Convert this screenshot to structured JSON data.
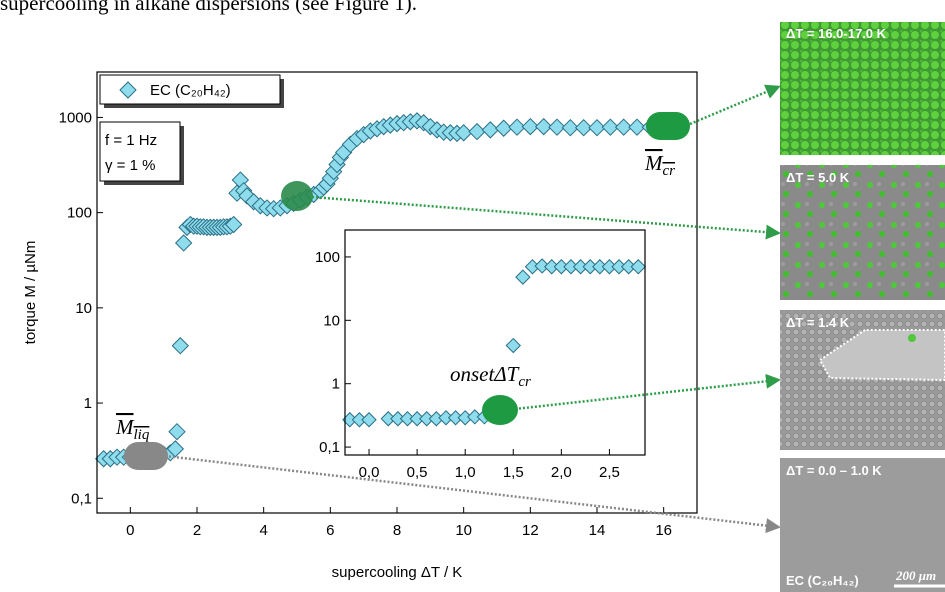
{
  "caption": "supercooling in alkane dispersions (see Figure 1).",
  "chart_data": [
    {
      "type": "scatter",
      "xlabel": "supercooling ΔT / K",
      "ylabel": "torque M / µNm",
      "xlim": [
        -1,
        17
      ],
      "xticks": [
        0,
        2,
        4,
        6,
        8,
        10,
        12,
        14,
        16
      ],
      "ylim": [
        0.07,
        3000
      ],
      "yscale": "log",
      "yticks": [
        {
          "value": 0.1,
          "label": "0,1"
        },
        1,
        10,
        100,
        1000
      ],
      "legend": "upper left",
      "x": [
        -0.8,
        -0.6,
        -0.4,
        -0.2,
        0,
        0.2,
        0.4,
        0.6,
        0.8,
        1.0,
        1.2,
        1.35,
        1.4,
        1.5,
        1.6,
        1.7,
        1.8,
        1.9,
        2.0,
        2.1,
        2.2,
        2.3,
        2.4,
        2.5,
        2.6,
        2.7,
        2.8,
        2.9,
        3.0,
        3.1,
        3.2,
        3.3,
        3.4,
        3.5,
        3.7,
        3.9,
        4.1,
        4.3,
        4.5,
        4.7,
        4.9,
        5.1,
        5.3,
        5.5,
        5.7,
        5.8,
        5.9,
        6.0,
        6.1,
        6.2,
        6.3,
        6.4,
        6.6,
        6.8,
        7.0,
        7.2,
        7.4,
        7.6,
        7.8,
        8.0,
        8.2,
        8.4,
        8.6,
        8.8,
        9.0,
        9.2,
        9.4,
        9.6,
        9.8,
        10.0,
        10.4,
        10.8,
        11.2,
        11.6,
        12.0,
        12.4,
        12.8,
        13.2,
        13.6,
        14.0,
        14.4,
        14.8,
        15.2,
        15.6,
        16.0,
        16.4
      ],
      "series": [
        {
          "name": "EC (C₂₀H₄₂)",
          "color": "#8fdcec",
          "values": [
            0.26,
            0.26,
            0.27,
            0.27,
            0.27,
            0.28,
            0.28,
            0.28,
            0.29,
            0.29,
            0.3,
            0.33,
            0.5,
            4,
            48,
            70,
            75,
            72,
            72,
            71,
            71,
            70,
            70,
            70,
            70,
            70,
            71,
            71,
            72,
            75,
            160,
            220,
            170,
            150,
            130,
            118,
            112,
            110,
            112,
            118,
            125,
            135,
            145,
            155,
            170,
            185,
            200,
            230,
            270,
            320,
            380,
            430,
            520,
            600,
            660,
            720,
            760,
            800,
            830,
            860,
            880,
            900,
            920,
            880,
            800,
            740,
            700,
            690,
            680,
            690,
            710,
            740,
            770,
            790,
            800,
            800,
            790,
            780,
            780,
            780,
            790,
            790,
            790,
            790,
            790,
            790
          ]
        }
      ],
      "annotations": {
        "frequency": "f = 1 Hz",
        "strain": "γ = 1 %",
        "m_cr": {
          "base": "M",
          "sub": "cr"
        },
        "m_liq": {
          "base": "M",
          "sub": "liq"
        }
      }
    },
    {
      "type": "scatter",
      "xlim": [
        -0.25,
        2.87
      ],
      "xticks": [
        {
          "value": 0,
          "label": "0,0"
        },
        {
          "value": 0.5,
          "label": "0,5"
        },
        {
          "value": 1,
          "label": "1,0"
        },
        {
          "value": 1.5,
          "label": "1,5"
        },
        {
          "value": 2,
          "label": "2,0"
        },
        {
          "value": 2.5,
          "label": "2,5"
        }
      ],
      "ylim": [
        0.075,
        266
      ],
      "yscale": "log",
      "yticks": [
        {
          "value": 0.1,
          "label": "0,1"
        },
        1,
        10,
        100
      ],
      "x": [
        -0.2,
        -0.1,
        0.0,
        0.2,
        0.3,
        0.4,
        0.5,
        0.6,
        0.7,
        0.8,
        0.9,
        1.0,
        1.1,
        1.2,
        1.3,
        1.35,
        1.5,
        1.6,
        1.7,
        1.8,
        1.9,
        2.0,
        2.1,
        2.2,
        2.3,
        2.4,
        2.5,
        2.6,
        2.7,
        2.8
      ],
      "series": [
        {
          "color": "#8fdcec",
          "values": [
            0.27,
            0.27,
            0.27,
            0.28,
            0.28,
            0.28,
            0.28,
            0.28,
            0.28,
            0.29,
            0.29,
            0.29,
            0.3,
            0.3,
            0.32,
            0.5,
            4,
            48,
            70,
            72,
            70,
            70,
            70,
            70,
            70,
            70,
            70,
            70,
            70,
            70
          ]
        }
      ],
      "annotations": {
        "onset": {
          "base": "onsetΔT",
          "sub": "cr"
        }
      }
    }
  ],
  "panels": [
    {
      "label": "ΔT = 16.0-17.0 K"
    },
    {
      "label": "ΔT = 5.0 K"
    },
    {
      "label": "ΔT = 1.4 K"
    },
    {
      "label": "ΔT = 0.0 – 1.0 K"
    }
  ],
  "sample_label": "EC (C₂₀H₄₂)",
  "scale_bar": "200 μm"
}
